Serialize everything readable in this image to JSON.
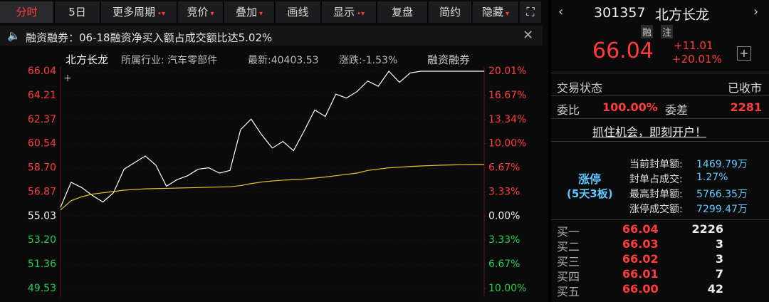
{
  "toolbar": [
    "分时",
    "5日",
    "更多周期",
    "竞价",
    "叠加",
    "画线",
    "显示",
    "复盘",
    "简约",
    "隐藏"
  ],
  "notice": "融资融券：06-18融资净买入额占成交额比达5.02%",
  "chart_header": {
    "name": "北方长龙",
    "industry": "所属行业: 汽车零部件",
    "latest": "最新:40403.53",
    "change": "涨跌:-1.53%",
    "tag": "融资融券"
  },
  "chart": {
    "type": "line",
    "ylim": [
      49.53,
      66.04
    ],
    "yticks": [
      66.04,
      64.21,
      62.37,
      60.54,
      {
        "value": 58.7,
        "label": "58.70"
      },
      56.87,
      55.03,
      {
        "value": 53.2,
        "label": "53.20"
      },
      51.36,
      49.53
    ],
    "y2lim": [
      -10.0,
      20.01
    ],
    "y2ticks": [
      {
        "value": 20.01,
        "label": "20.01%"
      },
      {
        "value": 16.67,
        "label": "16.67%"
      },
      {
        "value": 13.34,
        "label": "13.34%"
      },
      {
        "value": 10.0,
        "label": "10.00%"
      },
      {
        "value": 6.67,
        "label": "6.67%"
      },
      {
        "value": 3.33,
        "label": "3.33%"
      },
      {
        "value": 0,
        "label": "0.00%"
      },
      {
        "value": -3.33,
        "label": "3.33%"
      },
      {
        "value": -6.67,
        "label": "6.67%"
      },
      {
        "value": -10.0,
        "label": "10.00%"
      }
    ],
    "series": [
      {
        "color": "#ffffff",
        "values": [
          55.7,
          57.6,
          57.2,
          56.6,
          56.1,
          56.8,
          58.6,
          59.1,
          59.6,
          58.9,
          57.3,
          57.8,
          58.1,
          58.6,
          58.7,
          58.3,
          58.5,
          61.6,
          62.4,
          61.2,
          60.2,
          60.7,
          60.0,
          61.5,
          63.1,
          62.6,
          64.3,
          64.0,
          64.5,
          65.3,
          64.9,
          66.04,
          65.2,
          65.9,
          66.04,
          66.04,
          66.04,
          66.04,
          66.04,
          66.04,
          66.04
        ]
      },
      {
        "color": "#e8c62a",
        "values": [
          55.5,
          56.2,
          56.5,
          56.7,
          56.8,
          56.9,
          57.0,
          57.05,
          57.1,
          57.12,
          57.14,
          57.16,
          57.18,
          57.2,
          57.22,
          57.24,
          57.26,
          57.35,
          57.5,
          57.62,
          57.7,
          57.76,
          57.8,
          57.85,
          57.92,
          58.0,
          58.1,
          58.2,
          58.3,
          58.5,
          58.6,
          58.7,
          58.75,
          58.8,
          58.84,
          58.87,
          58.9,
          58.92,
          58.94,
          58.95,
          58.95
        ]
      }
    ]
  },
  "quote": {
    "code": "301357",
    "name": "北方长龙",
    "badges": [
      "融",
      "注"
    ],
    "price": "66.04",
    "change": "+11.01",
    "change_pct": "+20.01%"
  },
  "status": {
    "label": "交易状态",
    "value": "已收市"
  },
  "ratio": {
    "label": "委比",
    "value": "100.00%",
    "diff_label": "委差",
    "diff": "2281"
  },
  "promo": "抓住机会，即刻开户！",
  "limit": {
    "title": "涨停",
    "subtitle": "(5天3板)",
    "rows": [
      [
        "当前封单额:",
        "1469.79万"
      ],
      [
        "封单占成交:",
        "1.27%"
      ],
      [
        "最高封单额:",
        "5766.35万"
      ],
      [
        "涨停成交额:",
        "7299.47万"
      ]
    ]
  },
  "bids": [
    [
      "买一",
      "66.04",
      "2226"
    ],
    [
      "买二",
      "66.03",
      "3"
    ],
    [
      "买三",
      "66.02",
      "3"
    ],
    [
      "买四",
      "66.01",
      "7"
    ],
    [
      "买五",
      "66.00",
      "42"
    ]
  ]
}
